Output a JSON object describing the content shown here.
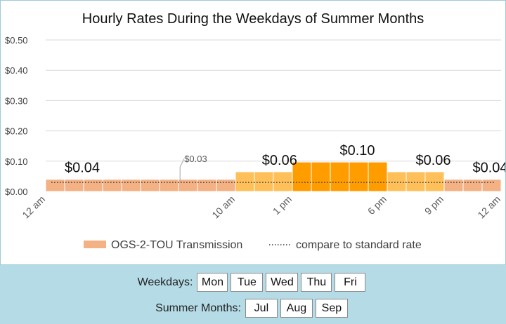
{
  "chart_data": {
    "type": "bar",
    "title": "Hourly Rates During the Weekdays of Summer Months",
    "xlabel": "",
    "ylabel": "",
    "ylim": [
      0,
      0.5
    ],
    "yticks": [
      "$0.00",
      "$0.10",
      "$0.20",
      "$0.30",
      "$0.40",
      "$0.50"
    ],
    "ytick_values": [
      0,
      0.1,
      0.2,
      0.3,
      0.4,
      0.5
    ],
    "xticks": [
      {
        "hour": 0,
        "label": "12 am"
      },
      {
        "hour": 10,
        "label": "10 am"
      },
      {
        "hour": 13,
        "label": "1 pm"
      },
      {
        "hour": 18,
        "label": "6 pm"
      },
      {
        "hour": 21,
        "label": "9 pm"
      },
      {
        "hour": 24,
        "label": "12 am"
      }
    ],
    "grid": true,
    "legend_position": "bottom",
    "series": [
      {
        "name": "OGS-2-TOU Transmission",
        "values": [
          0.04,
          0.04,
          0.04,
          0.04,
          0.04,
          0.04,
          0.04,
          0.04,
          0.04,
          0.04,
          0.065,
          0.065,
          0.065,
          0.097,
          0.097,
          0.097,
          0.097,
          0.097,
          0.065,
          0.065,
          0.065,
          0.04,
          0.04,
          0.04
        ]
      },
      {
        "name": "compare to standard rate",
        "style": "dotted-line",
        "value": 0.03
      }
    ],
    "annotations": [
      {
        "text": "$0.04",
        "hour": 1.0,
        "value": 0.04
      },
      {
        "text": "$0.03",
        "hour": 7.6,
        "value": 0.03,
        "leader": true
      },
      {
        "text": "$0.06",
        "hour": 11.4,
        "value": 0.065
      },
      {
        "text": "$0.10",
        "hour": 15.5,
        "value": 0.097
      },
      {
        "text": "$0.06",
        "hour": 19.5,
        "value": 0.065
      },
      {
        "text": "$0.04",
        "hour": 22.5,
        "value": 0.04
      }
    ],
    "colors": {
      "offpeak": "#f4b183",
      "shoulder": "#ffc05a",
      "peak": "#ff9c00",
      "grid": "#d9d9d9",
      "standard_line": "#404040"
    },
    "segments": [
      {
        "from": 0,
        "to": 10,
        "color_key": "offpeak"
      },
      {
        "from": 10,
        "to": 13,
        "color_key": "shoulder"
      },
      {
        "from": 13,
        "to": 18,
        "color_key": "peak"
      },
      {
        "from": 18,
        "to": 21,
        "color_key": "shoulder"
      },
      {
        "from": 21,
        "to": 24,
        "color_key": "offpeak"
      }
    ]
  },
  "controls": {
    "weekdays_label": "Weekdays:",
    "weekdays": [
      "Mon",
      "Tue",
      "Wed",
      "Thu",
      "Fri"
    ],
    "months_label": "Summer Months:",
    "months": [
      "Jul",
      "Aug",
      "Sep"
    ]
  }
}
